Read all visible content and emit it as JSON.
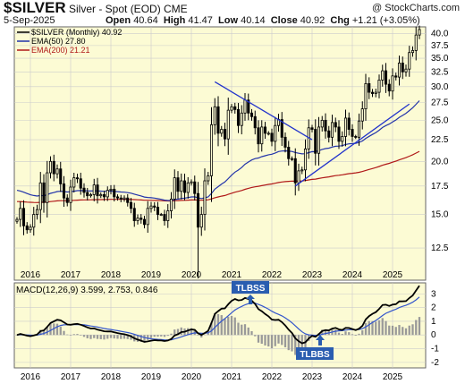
{
  "header": {
    "symbol": "$SILVER",
    "subtitle": "Silver - Spot (EOD)  CME",
    "watermark": "@ StockCharts.com",
    "date": "5-Sep-2025",
    "open_label": "Open",
    "open": "40.64",
    "high_label": "High",
    "high": "41.47",
    "low_label": "Low",
    "low": "40.14",
    "close_label": "Close",
    "close": "40.92",
    "chg_label": "Chg",
    "chg": "+1.21 (+3.05%)"
  },
  "colors": {
    "panel_bg": "#fcfbd4",
    "candles": "#000000",
    "ema50": "#2233aa",
    "ema200": "#b01818",
    "trendline": "#2233cc",
    "macd": "#000000",
    "signal": "#3355cc",
    "histogram": "#999999",
    "annotation_bg": "#2a5db0",
    "annotation_text": "#ffffff"
  },
  "chart_data": [
    {
      "type": "candlestick",
      "title": "$SILVER (Monthly) 40.92",
      "frequency": "monthly",
      "x_labels": [
        "2016",
        "2017",
        "2018",
        "2019",
        "2020",
        "2021",
        "2022",
        "2023",
        "2024",
        "2025"
      ],
      "y_ticks": [
        12.5,
        15.0,
        17.5,
        20.0,
        22.5,
        25.0,
        27.5,
        30.0,
        32.5,
        35.0,
        37.5,
        40.0
      ],
      "ylim": [
        10.5,
        41.5
      ],
      "y_scale": "log",
      "grid": true,
      "legend": "top-left",
      "legend_entries": [
        {
          "name": "$SILVER (Monthly) 40.92",
          "color_key": "candles"
        },
        {
          "name": "EMA(50) 27.80",
          "color_key": "ema50"
        },
        {
          "name": "EMA(200) 21.21",
          "color_key": "ema200"
        }
      ],
      "series": [
        {
          "name": "$SILVER (Monthly)",
          "kind": "ohlc",
          "start": "2015-09",
          "x": [
            "2015-09",
            "2015-10",
            "2015-11",
            "2015-12",
            "2016-01",
            "2016-02",
            "2016-03",
            "2016-04",
            "2016-05",
            "2016-06",
            "2016-07",
            "2016-08",
            "2016-09",
            "2016-10",
            "2016-11",
            "2016-12",
            "2017-01",
            "2017-02",
            "2017-03",
            "2017-04",
            "2017-05",
            "2017-06",
            "2017-07",
            "2017-08",
            "2017-09",
            "2017-10",
            "2017-11",
            "2017-12",
            "2018-01",
            "2018-02",
            "2018-03",
            "2018-04",
            "2018-05",
            "2018-06",
            "2018-07",
            "2018-08",
            "2018-09",
            "2018-10",
            "2018-11",
            "2018-12",
            "2019-01",
            "2019-02",
            "2019-03",
            "2019-04",
            "2019-05",
            "2019-06",
            "2019-07",
            "2019-08",
            "2019-09",
            "2019-10",
            "2019-11",
            "2019-12",
            "2020-01",
            "2020-02",
            "2020-03",
            "2020-04",
            "2020-05",
            "2020-06",
            "2020-07",
            "2020-08",
            "2020-09",
            "2020-10",
            "2020-11",
            "2020-12",
            "2021-01",
            "2021-02",
            "2021-03",
            "2021-04",
            "2021-05",
            "2021-06",
            "2021-07",
            "2021-08",
            "2021-09",
            "2021-10",
            "2021-11",
            "2021-12",
            "2022-01",
            "2022-02",
            "2022-03",
            "2022-04",
            "2022-05",
            "2022-06",
            "2022-07",
            "2022-08",
            "2022-09",
            "2022-10",
            "2022-11",
            "2022-12",
            "2023-01",
            "2023-02",
            "2023-03",
            "2023-04",
            "2023-05",
            "2023-06",
            "2023-07",
            "2023-08",
            "2023-09",
            "2023-10",
            "2023-11",
            "2023-12",
            "2024-01",
            "2024-02",
            "2024-03",
            "2024-04",
            "2024-05",
            "2024-06",
            "2024-07",
            "2024-08",
            "2024-09",
            "2024-10",
            "2024-11",
            "2024-12",
            "2025-01",
            "2025-02",
            "2025-03",
            "2025-04",
            "2025-05",
            "2025-06",
            "2025-07",
            "2025-08",
            "2025-09"
          ],
          "close": [
            14.6,
            15.5,
            14.1,
            13.8,
            14.0,
            15.0,
            15.4,
            17.8,
            16.0,
            18.8,
            20.0,
            18.7,
            19.2,
            17.7,
            16.4,
            16.0,
            17.4,
            18.3,
            18.2,
            17.3,
            16.9,
            16.6,
            16.7,
            17.6,
            16.6,
            16.7,
            16.5,
            17.1,
            17.2,
            16.5,
            16.4,
            16.3,
            16.4,
            16.0,
            15.5,
            14.5,
            14.7,
            14.6,
            14.2,
            15.5,
            15.7,
            15.6,
            15.0,
            15.0,
            14.5,
            15.3,
            16.3,
            18.3,
            17.0,
            18.0,
            16.9,
            17.8,
            17.9,
            16.8,
            14.0,
            15.0,
            18.0,
            18.5,
            24.4,
            26.9,
            23.3,
            23.8,
            22.6,
            26.4,
            26.9,
            26.5,
            24.3,
            26.0,
            27.9,
            26.0,
            25.5,
            24.0,
            22.0,
            24.1,
            23.3,
            23.3,
            22.3,
            24.3,
            25.1,
            22.8,
            21.6,
            20.3,
            20.3,
            17.8,
            19.0,
            19.1,
            21.4,
            24.0,
            23.8,
            20.9,
            24.1,
            25.0,
            23.6,
            22.8,
            24.7,
            24.1,
            22.3,
            22.9,
            25.3,
            23.8,
            22.9,
            22.8,
            24.9,
            26.6,
            30.5,
            29.1,
            28.9,
            29.1,
            31.1,
            32.7,
            30.4,
            29.3,
            31.8,
            31.6,
            34.1,
            32.5,
            33.0,
            36.1,
            36.5,
            39.7,
            40.9
          ]
        }
      ],
      "overlays": [
        {
          "name": "EMA(50)",
          "value": 27.8,
          "color_key": "ema50"
        },
        {
          "name": "EMA(200)",
          "value": 21.21,
          "color_key": "ema200"
        }
      ],
      "annotations": [
        {
          "type": "trendline",
          "from": [
            "2020-08",
            30.8
          ],
          "to": [
            "2023-01",
            22.5
          ]
        },
        {
          "type": "trendline",
          "from": [
            "2022-08",
            17.5
          ],
          "to": [
            "2025-06",
            27.3
          ]
        }
      ]
    },
    {
      "type": "macd",
      "title": "MACD(12,26,9) 3.599, 2.753, 0.846",
      "y_ticks": [
        -2,
        -1,
        0,
        1,
        2,
        3
      ],
      "ylim": [
        -2.4,
        3.8
      ],
      "x_labels": [
        "2016",
        "2017",
        "2018",
        "2019",
        "2020",
        "2021",
        "2022",
        "2023",
        "2024",
        "2025"
      ],
      "series": [
        {
          "name": "MACD",
          "value": 3.599
        },
        {
          "name": "Signal",
          "value": 2.753
        },
        {
          "name": "Histogram",
          "value": 0.846
        }
      ],
      "annotations": [
        {
          "text": "TLBSS",
          "date": "2021-08",
          "value": 2.3
        },
        {
          "text": "TLBBS",
          "date": "2023-03",
          "value": -0.5
        }
      ]
    }
  ]
}
